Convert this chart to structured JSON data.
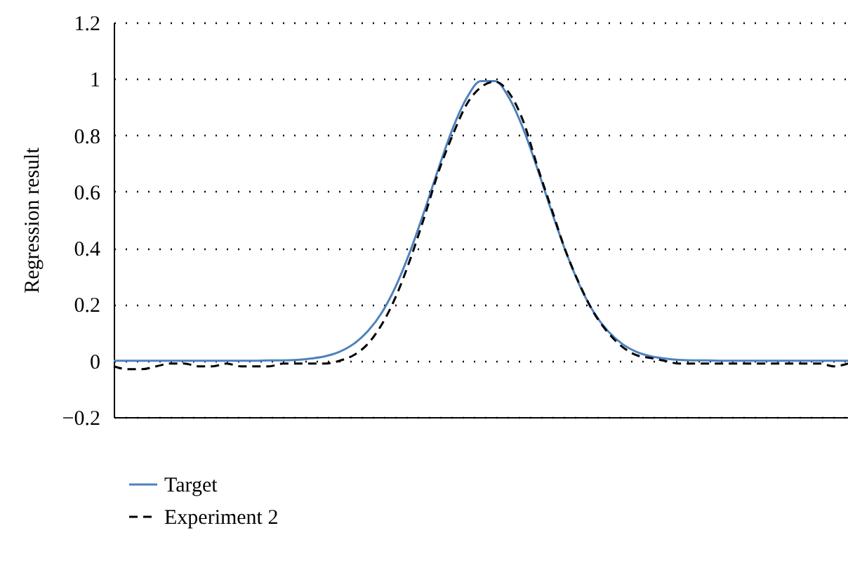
{
  "chart_data": {
    "type": "line",
    "ylabel": "Regression result",
    "categories": [
      null,
      null,
      null,
      null,
      null,
      null,
      null,
      null,
      null,
      null,
      null,
      null,
      null,
      null,
      null,
      null,
      null,
      null,
      null,
      null,
      null,
      null,
      null,
      null,
      null,
      null,
      null,
      null,
      null,
      null,
      null,
      null,
      null,
      null,
      null,
      null,
      null,
      null,
      null,
      null,
      null,
      null,
      null,
      null,
      null,
      null,
      null,
      null,
      null,
      null,
      null,
      null,
      null
    ],
    "series": [
      {
        "name": "Target",
        "color": "#4f81bd",
        "line_style": "solid",
        "values": [
          0,
          0,
          0,
          0,
          0,
          0,
          0,
          0,
          0,
          0,
          0,
          0.001,
          0.001,
          0.003,
          0.008,
          0.016,
          0.032,
          0.06,
          0.105,
          0.172,
          0.267,
          0.389,
          0.531,
          0.682,
          0.823,
          0.932,
          0.992,
          0.992,
          0.932,
          0.823,
          0.682,
          0.531,
          0.389,
          0.267,
          0.172,
          0.105,
          0.06,
          0.032,
          0.016,
          0.008,
          0.003,
          0.001,
          0.001,
          0,
          0,
          0,
          0,
          0,
          0,
          0,
          0,
          0,
          0
        ]
      },
      {
        "name": "Experiment 2",
        "color": "#000000",
        "line_style": "dashed",
        "values": [
          -0.02,
          -0.03,
          -0.03,
          -0.02,
          -0.01,
          -0.01,
          -0.02,
          -0.02,
          -0.01,
          -0.02,
          -0.02,
          -0.02,
          -0.01,
          -0.01,
          -0.01,
          -0.01,
          0,
          0.02,
          0.06,
          0.13,
          0.23,
          0.36,
          0.51,
          0.67,
          0.8,
          0.91,
          0.97,
          0.99,
          0.95,
          0.85,
          0.69,
          0.54,
          0.39,
          0.27,
          0.17,
          0.1,
          0.05,
          0.02,
          0.01,
          0,
          -0.01,
          -0.01,
          -0.01,
          -0.01,
          -0.01,
          -0.01,
          -0.01,
          -0.01,
          -0.01,
          -0.01,
          -0.01,
          -0.02,
          -0.01
        ]
      }
    ],
    "ylim": [
      -0.2,
      1.2
    ],
    "yticks": [
      {
        "value": -0.2,
        "label": "−0.2"
      },
      0,
      0.2,
      0.4,
      0.6,
      0.8,
      1,
      1.2
    ],
    "grid": "y",
    "legend": "bottom",
    "tick_labels": "y"
  }
}
